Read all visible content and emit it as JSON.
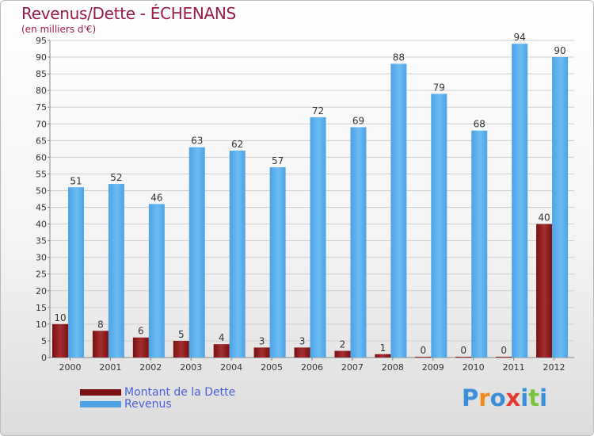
{
  "header": {
    "title": "Revenus/Dette - ÉCHENANS",
    "subtitle": "(en milliers d'€)"
  },
  "colors": {
    "debt": "#7a1010",
    "debt_light": "#a33030",
    "revenue": "#4ea3e6",
    "revenue_light": "#6cbcf3",
    "title": "#9b1b4a",
    "legend_text": "#4a5fd9"
  },
  "chart_data": {
    "type": "bar",
    "title": "Revenus/Dette - ÉCHENANS",
    "subtitle": "(en milliers d'€)",
    "xlabel": "",
    "ylabel": "",
    "ylim": [
      0,
      95
    ],
    "yticks": [
      0,
      5,
      10,
      15,
      20,
      25,
      30,
      35,
      40,
      45,
      50,
      55,
      60,
      65,
      70,
      75,
      80,
      85,
      90,
      95
    ],
    "grid": true,
    "legend_position": "bottom-left",
    "categories": [
      "2000",
      "2001",
      "2002",
      "2003",
      "2004",
      "2005",
      "2006",
      "2007",
      "2008",
      "2009",
      "2010",
      "2011",
      "2012"
    ],
    "series": [
      {
        "name": "Montant de la Dette",
        "values": [
          10,
          8,
          6,
          5,
          4,
          3,
          3,
          2,
          1,
          0,
          0,
          0,
          40
        ]
      },
      {
        "name": "Revenus",
        "values": [
          51,
          52,
          46,
          63,
          62,
          57,
          72,
          69,
          88,
          79,
          68,
          94,
          90
        ]
      }
    ]
  },
  "legend": {
    "items": [
      {
        "label": "Montant de la Dette",
        "color": "#7a1010"
      },
      {
        "label": "Revenus",
        "color": "#4ea3e6"
      }
    ]
  },
  "logo": {
    "text": "Proxiti",
    "letter_colors": [
      "#3a8fd8",
      "#f08a1c",
      "#3a8fd8",
      "#e23b2e",
      "#3a8fd8",
      "#7cc242",
      "#3a8fd8"
    ]
  }
}
